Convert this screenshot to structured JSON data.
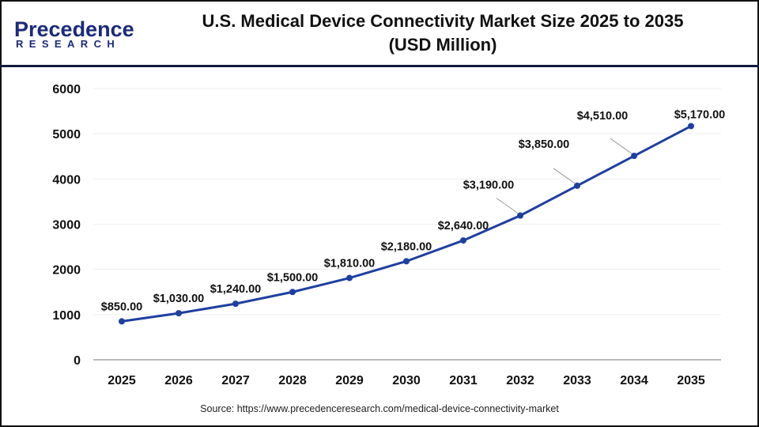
{
  "logo": {
    "top": "Precedence",
    "bottom": "RESEARCH"
  },
  "chart_data": {
    "type": "line",
    "title": "U.S. Medical Device Connectivity Market Size 2025 to 2035",
    "subtitle": "(USD Million)",
    "xlabel": "",
    "ylabel": "",
    "categories": [
      "2025",
      "2026",
      "2027",
      "2028",
      "2029",
      "2030",
      "2031",
      "2032",
      "2033",
      "2034",
      "2035"
    ],
    "values": [
      850,
      1030,
      1240,
      1500,
      1810,
      2180,
      2640,
      3190,
      3850,
      4510,
      5170
    ],
    "data_labels": [
      "$850.00",
      "$1,030.00",
      "$1,240.00",
      "$1,500.00",
      "$1,810.00",
      "$2,180.00",
      "$2,640.00",
      "$3,190.00",
      "$3,850.00",
      "$4,510.00",
      "$5,170.00"
    ],
    "ylim": [
      0,
      6000
    ],
    "yticks": [
      "0",
      "1000",
      "2000",
      "3000",
      "4000",
      "5000",
      "6000"
    ],
    "grid": true,
    "line_color": "#1f3fa0"
  },
  "source": "Source: https://www.precedenceresearch.com/medical-device-connectivity-market"
}
